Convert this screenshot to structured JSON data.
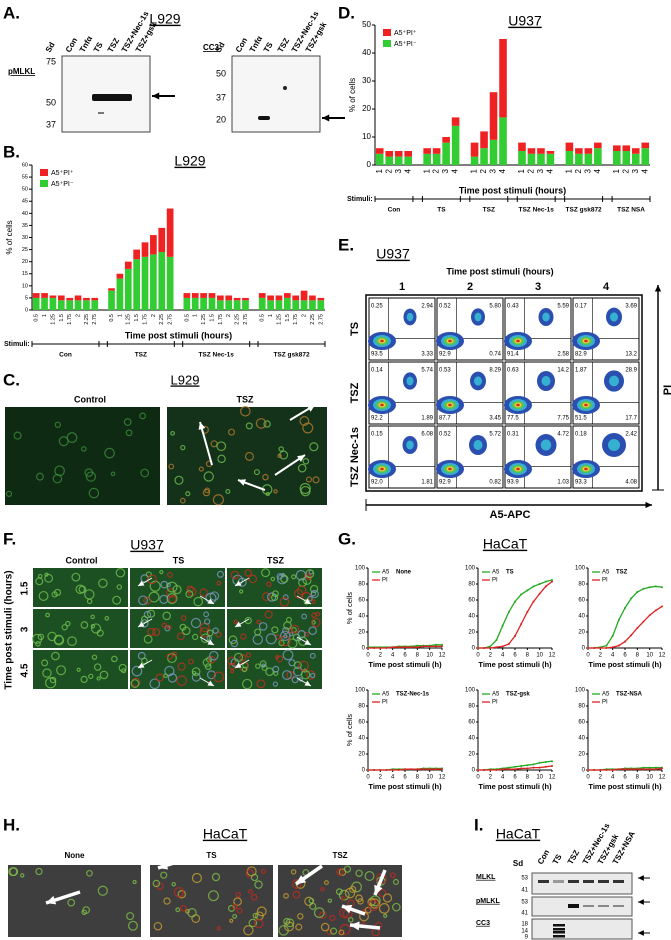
{
  "panels": {
    "A": {
      "letter": "A.",
      "title": "L929",
      "blots": [
        {
          "label": "pMLKL",
          "lanes": [
            "Sd",
            "Con",
            "Tnfα",
            "TS",
            "TSZ",
            "TSZ+Nec-1s",
            "TSZ+gsk"
          ],
          "markers": [
            75,
            50,
            37
          ]
        },
        {
          "label": "CC3",
          "lanes": [
            "Sd",
            "Con",
            "Tnfα",
            "TS",
            "TSZ",
            "TSZ+Nec-1s",
            "TSZ+gsk"
          ],
          "markers": [
            50,
            37,
            20
          ]
        }
      ]
    },
    "B": {
      "letter": "B.",
      "chart": {
        "type": "bar",
        "title": "L929",
        "y_label": "% of cells",
        "x_label": "Time post stimuli (hours)",
        "stimuli_label": "Stimuli:",
        "groups": [
          "Con",
          "TSZ",
          "TSZ Nec-1s",
          "TSZ gsk872"
        ],
        "categories": [
          "0.5",
          "1",
          "1.25",
          "1.5",
          "1.75",
          "2",
          "2.25",
          "2.75",
          "0.5",
          "1",
          "1.25",
          "1.5",
          "1.75",
          "2",
          "2.25",
          "2.75",
          "0.5",
          "1",
          "1.25",
          "1.5",
          "1.75",
          "2",
          "2.25",
          "2.75",
          "0.5",
          "1",
          "1.25",
          "1.5",
          "1.75",
          "2",
          "2.25",
          "2.75"
        ],
        "series": [
          {
            "name": "A5⁺PI⁻",
            "color": "#33cc33",
            "values": [
              5,
              5,
              5,
              4,
              4,
              4,
              4,
              4,
              8,
              13,
              17,
              21,
              22,
              23,
              24,
              22,
              5,
              5,
              5,
              5,
              4,
              4,
              4,
              4,
              5,
              4,
              4,
              5,
              4,
              4,
              4,
              4
            ]
          },
          {
            "name": "A5⁺PI⁺",
            "color": "#ee2222",
            "values": [
              2,
              2,
              1,
              2,
              1,
              2,
              1,
              1,
              1,
              2,
              3,
              4,
              6,
              8,
              10,
              20,
              2,
              2,
              2,
              2,
              2,
              2,
              1,
              1,
              2,
              2,
              2,
              2,
              2,
              4,
              2,
              1
            ]
          }
        ],
        "ylim": [
          0,
          60
        ],
        "yticks": [
          0,
          5,
          10,
          15,
          20,
          25,
          30,
          35,
          40,
          45,
          50,
          55,
          60
        ]
      }
    },
    "C": {
      "letter": "C.",
      "title": "L929",
      "columns": [
        "Control",
        "TSZ"
      ]
    },
    "D": {
      "letter": "D.",
      "chart": {
        "type": "bar",
        "title": "U937",
        "y_label": "% of cells",
        "x_label": "Time post stimuli (hours)",
        "stimuli_label": "Stimuli:",
        "groups": [
          "Con",
          "TS",
          "TSZ",
          "TSZ Nec-1s",
          "TSZ gsk872",
          "TSZ NSA"
        ],
        "categories": [
          "1",
          "2",
          "3",
          "4",
          "1",
          "2",
          "3",
          "4",
          "1",
          "2",
          "3",
          "4",
          "1",
          "2",
          "3",
          "4",
          "1",
          "2",
          "3",
          "4",
          "1",
          "2",
          "3",
          "4"
        ],
        "series": [
          {
            "name": "A5⁺PI⁻",
            "color": "#33cc33",
            "values": [
              4,
              3,
              3,
              3,
              4,
              4,
              8,
              14,
              3,
              6,
              9,
              17,
              5,
              4,
              4,
              4,
              5,
              4,
              4,
              6,
              5,
              5,
              4,
              6
            ]
          },
          {
            "name": "A5⁺PI⁺",
            "color": "#ee2222",
            "values": [
              2,
              2,
              2,
              2,
              2,
              2,
              2,
              3,
              5,
              6,
              17,
              28,
              3,
              2,
              2,
              1,
              3,
              2,
              2,
              2,
              2,
              2,
              2,
              2
            ]
          }
        ],
        "ylim": [
          0,
          50
        ],
        "yticks": [
          0,
          10,
          20,
          30,
          40,
          50
        ]
      }
    },
    "E": {
      "letter": "E.",
      "title": "U937",
      "col_title": "Time post stimuli (hours)",
      "columns": [
        "1",
        "2",
        "3",
        "4"
      ],
      "x_label": "A5-APC",
      "y_label": "PI",
      "rows": [
        {
          "label": "TS",
          "cells": [
            [
              "0.25",
              "2.94",
              "93.5",
              "3.33"
            ],
            [
              "0.52",
              "5.80",
              "92.9",
              "0.74"
            ],
            [
              "0.43",
              "5.59",
              "91.4",
              "2.58"
            ],
            [
              "0.17",
              "3.69",
              "82.9",
              "13.2"
            ]
          ]
        },
        {
          "label": "TSZ",
          "cells": [
            [
              "0.14",
              "5.74",
              "92.2",
              "1.89"
            ],
            [
              "0.53",
              "8.29",
              "87.7",
              "3.45"
            ],
            [
              "0.63",
              "14.2",
              "77.5",
              "7.75"
            ],
            [
              "1.87",
              "28.9",
              "51.5",
              "17.7"
            ]
          ]
        },
        {
          "label": "TSZ Nec-1s",
          "cells": [
            [
              "0.15",
              "6.08",
              "92.0",
              "1.81"
            ],
            [
              "0.52",
              "5.72",
              "92.9",
              "0.82"
            ],
            [
              "0.31",
              "4.72",
              "93.9",
              "1.03"
            ],
            [
              "0.18",
              "2.42",
              "93.3",
              "4.08"
            ]
          ]
        }
      ]
    },
    "F": {
      "letter": "F.",
      "title": "U937",
      "columns": [
        "Control",
        "TS",
        "TSZ"
      ],
      "rows": [
        "1.5",
        "3",
        "4.5"
      ],
      "y_label": "Time post stimuli (hours)"
    },
    "G": {
      "letter": "G.",
      "title": "HaCaT",
      "y_label": "% of cells",
      "x_label": "Time post stimuli (h)",
      "xlim": [
        0,
        12
      ],
      "xticks": [
        0,
        2,
        4,
        6,
        8,
        10,
        12
      ],
      "ylim": [
        0,
        100
      ],
      "yticks": [
        0,
        20,
        40,
        60,
        80,
        100
      ],
      "charts": [
        {
          "type": "line",
          "title": "None",
          "x": [
            0,
            1,
            2,
            3,
            4,
            5,
            6,
            7,
            8,
            9,
            10,
            11,
            12
          ],
          "series": [
            {
              "name": "A5",
              "color": "#22aa22",
              "values": [
                1,
                1,
                1,
                1,
                1,
                2,
                2,
                2,
                3,
                3,
                3,
                4,
                4
              ]
            },
            {
              "name": "PI",
              "color": "#dd2222",
              "values": [
                0,
                0,
                0,
                0,
                1,
                1,
                1,
                1,
                1,
                2,
                2,
                2,
                2
              ]
            }
          ]
        },
        {
          "type": "line",
          "title": "TS",
          "x": [
            0,
            1,
            2,
            3,
            4,
            5,
            6,
            7,
            8,
            9,
            10,
            11,
            12
          ],
          "series": [
            {
              "name": "A5",
              "color": "#22aa22",
              "values": [
                0,
                0,
                2,
                10,
                28,
                45,
                58,
                67,
                72,
                77,
                80,
                83,
                85
              ]
            },
            {
              "name": "PI",
              "color": "#dd2222",
              "values": [
                0,
                0,
                0,
                1,
                2,
                5,
                15,
                30,
                45,
                58,
                68,
                77,
                83
              ]
            }
          ]
        },
        {
          "type": "line",
          "title": "TSZ",
          "x": [
            0,
            1,
            2,
            3,
            4,
            5,
            6,
            7,
            8,
            9,
            10,
            11,
            12
          ],
          "series": [
            {
              "name": "A5",
              "color": "#22aa22",
              "values": [
                0,
                0,
                1,
                3,
                15,
                35,
                50,
                62,
                70,
                74,
                76,
                77,
                76
              ]
            },
            {
              "name": "PI",
              "color": "#dd2222",
              "values": [
                0,
                0,
                0,
                0,
                1,
                3,
                8,
                16,
                25,
                33,
                41,
                47,
                52
              ]
            }
          ]
        },
        {
          "type": "line",
          "title": "TSZ-Nec-1s",
          "x": [
            0,
            1,
            2,
            3,
            4,
            5,
            6,
            7,
            8,
            9,
            10,
            11,
            12
          ],
          "series": [
            {
              "name": "A5",
              "color": "#22aa22",
              "values": [
                0,
                0,
                0,
                0,
                1,
                1,
                1,
                1,
                1,
                2,
                2,
                2,
                2
              ]
            },
            {
              "name": "PI",
              "color": "#dd2222",
              "values": [
                0,
                0,
                0,
                0,
                0,
                0,
                1,
                1,
                1,
                1,
                1,
                1,
                1
              ]
            }
          ]
        },
        {
          "type": "line",
          "title": "TSZ-gsk",
          "x": [
            0,
            1,
            2,
            3,
            4,
            5,
            6,
            7,
            8,
            9,
            10,
            11,
            12
          ],
          "series": [
            {
              "name": "A5",
              "color": "#22aa22",
              "values": [
                0,
                0,
                1,
                1,
                2,
                3,
                4,
                5,
                6,
                7,
                9,
                10,
                11
              ]
            },
            {
              "name": "PI",
              "color": "#dd2222",
              "values": [
                0,
                0,
                0,
                0,
                1,
                1,
                1,
                2,
                2,
                3,
                3,
                4,
                5
              ]
            }
          ]
        },
        {
          "type": "line",
          "title": "TSZ-NSA",
          "x": [
            0,
            1,
            2,
            3,
            4,
            5,
            6,
            7,
            8,
            9,
            10,
            11,
            12
          ],
          "series": [
            {
              "name": "A5",
              "color": "#22aa22",
              "values": [
                0,
                0,
                0,
                1,
                1,
                1,
                2,
                2,
                2,
                3,
                3,
                3,
                3
              ]
            },
            {
              "name": "PI",
              "color": "#dd2222",
              "values": [
                0,
                0,
                0,
                0,
                0,
                1,
                1,
                1,
                1,
                1,
                1,
                1,
                2
              ]
            }
          ]
        }
      ]
    },
    "H": {
      "letter": "H.",
      "title": "HaCaT",
      "columns": [
        "None",
        "TS",
        "TSZ"
      ]
    },
    "I": {
      "letter": "I.",
      "title": "HaCaT",
      "lanes": [
        "Sd",
        "Con",
        "TS",
        "TSZ",
        "TSZ+Nec-1s",
        "TSZ+gsk",
        "TSZ+NSA"
      ],
      "blots": [
        {
          "label": "MLKL",
          "markers": [
            53,
            41
          ]
        },
        {
          "label": "pMLKL",
          "markers": [
            53,
            41
          ]
        },
        {
          "label": "CC3",
          "markers": [
            18,
            14,
            9
          ]
        }
      ]
    }
  }
}
